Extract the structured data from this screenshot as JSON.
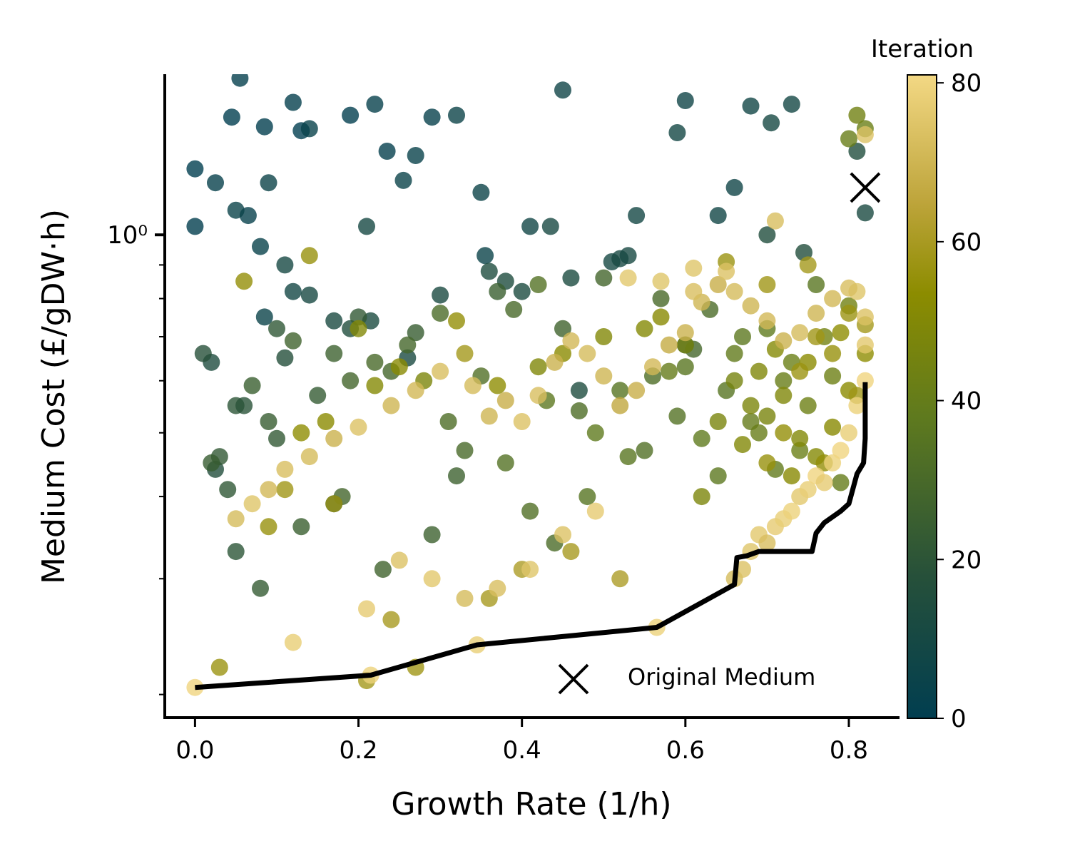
{
  "chart_data": {
    "type": "scatter",
    "xlabel": "Growth Rate (1/h)",
    "ylabel": "Medium Cost (£/gDW·h)",
    "x_ticks": [
      "0.0",
      "0.2",
      "0.4",
      "0.6",
      "0.8"
    ],
    "x_tick_values": [
      0.0,
      0.2,
      0.4,
      0.6,
      0.8
    ],
    "xlim": [
      -0.037,
      0.862
    ],
    "ylim": [
      0.184,
      1.755
    ],
    "y_scale": "log",
    "y_tick_label": "10⁰",
    "y_tick_value": 1.0,
    "colorbar": {
      "title": "Iteration",
      "ticks": [
        "0",
        "20",
        "40",
        "60",
        "80"
      ],
      "tick_values": [
        0,
        20,
        40,
        60,
        80
      ],
      "range": [
        0,
        81
      ],
      "colors": [
        "#013e50",
        "#26503a",
        "#5f7a1e",
        "#8c8c00",
        "#bda43a",
        "#f3d884"
      ]
    },
    "legend": {
      "label": "Original Medium",
      "position": "lower-right"
    },
    "original_medium": {
      "x": 0.82,
      "y": 1.18
    },
    "pareto_front": {
      "x": [
        0.0,
        0.215,
        0.345,
        0.565,
        0.66,
        0.663,
        0.675,
        0.69,
        0.705,
        0.755,
        0.76,
        0.77,
        0.79,
        0.8,
        0.81,
        0.818,
        0.82,
        0.82
      ],
      "y": [
        0.205,
        0.214,
        0.238,
        0.253,
        0.294,
        0.323,
        0.325,
        0.33,
        0.33,
        0.33,
        0.352,
        0.365,
        0.38,
        0.39,
        0.433,
        0.45,
        0.49,
        0.597
      ]
    },
    "series": [
      {
        "x": [
          0.0,
          0.0,
          0.045,
          0.055,
          0.065,
          0.085,
          0.12,
          0.13,
          0.14,
          0.19,
          0.22,
          0.235,
          0.255,
          0.27,
          0.29,
          0.35,
          0.355,
          0.45,
          0.41,
          0.32,
          0.6,
          0.59,
          0.68,
          0.705,
          0.73,
          0.64,
          0.66,
          0.54,
          0.51,
          0.52,
          0.08,
          0.085,
          0.11,
          0.14,
          0.17,
          0.215,
          0.3,
          0.36,
          0.4,
          0.435,
          0.38,
          0.7,
          0.745,
          0.82,
          0.81,
          0.025,
          0.05,
          0.09,
          0.12,
          0.21,
          0.26,
          0.46,
          0.47,
          0.53,
          0.6,
          0.025,
          0.02,
          0.17,
          0.19,
          0.11
        ],
        "y": [
          1.26,
          1.03,
          1.51,
          1.73,
          1.07,
          1.46,
          1.59,
          1.44,
          1.45,
          1.52,
          1.58,
          1.34,
          1.21,
          1.32,
          1.51,
          1.16,
          0.93,
          1.66,
          1.03,
          1.52,
          1.6,
          1.43,
          1.57,
          1.48,
          1.58,
          1.07,
          1.18,
          1.07,
          0.91,
          0.92,
          0.96,
          0.75,
          0.9,
          0.81,
          0.74,
          0.74,
          0.81,
          0.88,
          0.82,
          1.03,
          0.85,
          1.0,
          0.94,
          1.08,
          1.34,
          1.2,
          1.09,
          1.2,
          0.82,
          1.03,
          0.65,
          0.86,
          0.58,
          0.93,
          0.68,
          0.44,
          0.64,
          0.39,
          0.72,
          0.65
        ],
        "iteration": [
          0,
          1,
          0,
          2,
          3,
          1,
          2,
          0,
          4,
          1,
          3,
          2,
          5,
          4,
          3,
          6,
          5,
          7,
          8,
          6,
          7,
          9,
          8,
          10,
          9,
          8,
          7,
          9,
          10,
          11,
          4,
          5,
          10,
          11,
          12,
          13,
          12,
          14,
          13,
          11,
          14,
          15,
          16,
          12,
          15,
          3,
          5,
          6,
          9,
          10,
          12,
          13,
          14,
          11,
          15,
          16,
          14,
          13,
          15,
          17
        ]
      },
      {
        "x": [
          0.01,
          0.03,
          0.05,
          0.07,
          0.09,
          0.1,
          0.12,
          0.15,
          0.17,
          0.19,
          0.2,
          0.22,
          0.24,
          0.27,
          0.3,
          0.32,
          0.35,
          0.37,
          0.39,
          0.42,
          0.45,
          0.47,
          0.5,
          0.52,
          0.55,
          0.57,
          0.6,
          0.62,
          0.64,
          0.66,
          0.68,
          0.7,
          0.72,
          0.74,
          0.76,
          0.78,
          0.8,
          0.65,
          0.67,
          0.69,
          0.71,
          0.73,
          0.75,
          0.77,
          0.79,
          0.63,
          0.61,
          0.59,
          0.56,
          0.53,
          0.05,
          0.08,
          0.13,
          0.18,
          0.23,
          0.29,
          0.33,
          0.41,
          0.44,
          0.48,
          0.06,
          0.04,
          0.02,
          0.1,
          0.26,
          0.31,
          0.38,
          0.43,
          0.49,
          0.58
        ],
        "y": [
          0.66,
          0.46,
          0.55,
          0.59,
          0.52,
          0.72,
          0.69,
          0.57,
          0.66,
          0.6,
          0.75,
          0.64,
          0.62,
          0.71,
          0.76,
          0.43,
          0.61,
          0.82,
          0.77,
          0.84,
          0.72,
          0.54,
          0.86,
          0.58,
          0.47,
          0.8,
          0.63,
          0.49,
          0.43,
          0.66,
          0.52,
          0.72,
          0.6,
          0.47,
          0.84,
          0.61,
          0.78,
          0.58,
          0.7,
          0.5,
          0.44,
          0.64,
          0.55,
          0.7,
          0.42,
          0.77,
          0.67,
          0.53,
          0.61,
          0.46,
          0.33,
          0.29,
          0.36,
          0.4,
          0.31,
          0.35,
          0.47,
          0.38,
          0.34,
          0.4,
          0.55,
          0.41,
          0.45,
          0.49,
          0.68,
          0.52,
          0.45,
          0.56,
          0.5,
          0.62
        ],
        "iteration": [
          18,
          22,
          20,
          25,
          24,
          21,
          27,
          23,
          26,
          28,
          22,
          30,
          29,
          24,
          31,
          26,
          33,
          25,
          30,
          34,
          27,
          32,
          28,
          35,
          33,
          30,
          36,
          38,
          37,
          39,
          40,
          38,
          41,
          42,
          36,
          43,
          44,
          35,
          37,
          41,
          39,
          42,
          43,
          45,
          40,
          31,
          29,
          34,
          32,
          36,
          20,
          23,
          25,
          28,
          27,
          26,
          30,
          33,
          31,
          35,
          19,
          21,
          24,
          22,
          29,
          32,
          34,
          37,
          38,
          40
        ]
      },
      {
        "x": [
          0.66,
          0.68,
          0.7,
          0.72,
          0.74,
          0.76,
          0.78,
          0.8,
          0.82,
          0.82,
          0.81,
          0.8,
          0.67,
          0.69,
          0.71,
          0.73,
          0.75,
          0.77,
          0.79,
          0.64,
          0.62,
          0.6,
          0.7,
          0.72,
          0.74,
          0.76,
          0.78,
          0.8,
          0.82,
          0.81,
          0.57,
          0.55,
          0.5,
          0.45,
          0.42,
          0.37,
          0.32,
          0.28,
          0.25,
          0.22,
          0.2,
          0.16,
          0.13,
          0.09,
          0.06,
          0.03,
          0.11,
          0.14,
          0.17,
          0.21,
          0.24,
          0.27,
          0.33,
          0.36,
          0.4,
          0.46,
          0.52,
          0.65,
          0.7,
          0.75
        ],
        "y": [
          0.6,
          0.55,
          0.53,
          0.57,
          0.49,
          0.46,
          0.51,
          0.58,
          0.66,
          1.45,
          1.52,
          1.4,
          0.48,
          0.62,
          0.67,
          0.43,
          0.64,
          0.45,
          0.71,
          0.52,
          0.4,
          0.68,
          0.45,
          0.5,
          0.62,
          0.7,
          0.66,
          0.76,
          0.73,
          0.57,
          0.75,
          0.72,
          0.7,
          0.66,
          0.63,
          0.59,
          0.74,
          0.6,
          0.63,
          0.59,
          0.72,
          0.52,
          0.5,
          0.36,
          0.85,
          0.22,
          0.41,
          0.93,
          0.39,
          0.21,
          0.26,
          0.22,
          0.66,
          0.28,
          0.31,
          0.33,
          0.3,
          0.91,
          0.84,
          0.9
        ],
        "iteration": [
          46,
          48,
          47,
          49,
          50,
          51,
          52,
          53,
          54,
          42,
          44,
          41,
          50,
          49,
          51,
          52,
          53,
          55,
          54,
          47,
          48,
          46,
          56,
          55,
          57,
          58,
          56,
          57,
          59,
          58,
          52,
          51,
          50,
          53,
          49,
          54,
          55,
          48,
          52,
          51,
          50,
          53,
          54,
          56,
          55,
          57,
          58,
          56,
          57,
          59,
          60,
          58,
          59,
          60,
          61,
          60,
          61,
          57,
          58,
          59
        ]
      },
      {
        "x": [
          0.66,
          0.67,
          0.68,
          0.69,
          0.7,
          0.71,
          0.72,
          0.73,
          0.74,
          0.75,
          0.76,
          0.77,
          0.78,
          0.79,
          0.8,
          0.81,
          0.82,
          0.82,
          0.82,
          0.81,
          0.8,
          0.78,
          0.76,
          0.74,
          0.72,
          0.7,
          0.68,
          0.66,
          0.64,
          0.62,
          0.6,
          0.58,
          0.56,
          0.54,
          0.52,
          0.5,
          0.48,
          0.46,
          0.44,
          0.42,
          0.4,
          0.38,
          0.36,
          0.34,
          0.3,
          0.27,
          0.24,
          0.2,
          0.17,
          0.14,
          0.11,
          0.09,
          0.07,
          0.05,
          0.65,
          0.61,
          0.57,
          0.53,
          0.49,
          0.45,
          0.41,
          0.37,
          0.33,
          0.29,
          0.25,
          0.21,
          0.12,
          0.0,
          0.215,
          0.345,
          0.565,
          0.82,
          0.71,
          0.61
        ],
        "y": [
          0.3,
          0.31,
          0.33,
          0.35,
          0.34,
          0.36,
          0.37,
          0.38,
          0.4,
          0.41,
          0.43,
          0.42,
          0.45,
          0.47,
          0.5,
          0.55,
          0.6,
          0.68,
          0.75,
          0.82,
          0.83,
          0.8,
          0.76,
          0.71,
          0.69,
          0.74,
          0.78,
          0.82,
          0.84,
          0.79,
          0.71,
          0.68,
          0.63,
          0.58,
          0.55,
          0.61,
          0.66,
          0.69,
          0.64,
          0.57,
          0.52,
          0.56,
          0.53,
          0.59,
          0.62,
          0.58,
          0.55,
          0.51,
          0.49,
          0.46,
          0.44,
          0.41,
          0.39,
          0.37,
          0.88,
          0.82,
          0.85,
          0.86,
          0.38,
          0.35,
          0.31,
          0.29,
          0.28,
          0.3,
          0.32,
          0.27,
          0.24,
          0.205,
          0.214,
          0.238,
          0.253,
          1.42,
          1.05,
          0.89
        ],
        "iteration": [
          72,
          74,
          75,
          76,
          73,
          77,
          78,
          79,
          76,
          78,
          80,
          77,
          79,
          80,
          78,
          79,
          80,
          76,
          74,
          75,
          73,
          71,
          70,
          72,
          69,
          71,
          70,
          72,
          68,
          70,
          69,
          67,
          71,
          68,
          66,
          70,
          72,
          71,
          69,
          73,
          74,
          68,
          70,
          72,
          73,
          71,
          70,
          74,
          69,
          72,
          73,
          71,
          75,
          72,
          74,
          73,
          75,
          76,
          77,
          74,
          75,
          73,
          72,
          76,
          74,
          77,
          78,
          80,
          79,
          78,
          79,
          74,
          73,
          75
        ]
      }
    ]
  }
}
